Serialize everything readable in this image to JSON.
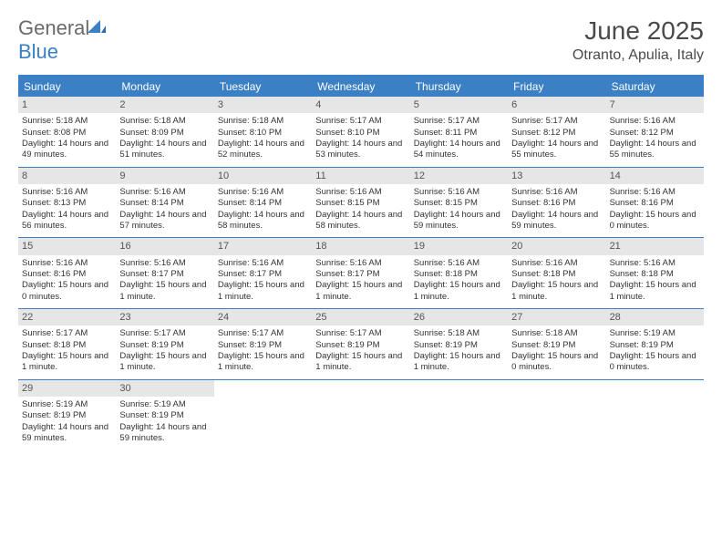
{
  "logo": {
    "general": "General",
    "blue": "Blue"
  },
  "title": "June 2025",
  "location": "Otranto, Apulia, Italy",
  "colors": {
    "brand_blue": "#3b7fc4",
    "header_gray": "#6a6a6a",
    "daynum_bg": "#e6e6e6",
    "text": "#333333",
    "background": "#ffffff"
  },
  "weekdays": [
    "Sunday",
    "Monday",
    "Tuesday",
    "Wednesday",
    "Thursday",
    "Friday",
    "Saturday"
  ],
  "day_fontsize": 9.5,
  "labels": {
    "sunrise": "Sunrise:",
    "sunset": "Sunset:",
    "daylight": "Daylight:"
  },
  "days": [
    {
      "n": 1,
      "sunrise": "5:18 AM",
      "sunset": "8:08 PM",
      "daylight": "14 hours and 49 minutes."
    },
    {
      "n": 2,
      "sunrise": "5:18 AM",
      "sunset": "8:09 PM",
      "daylight": "14 hours and 51 minutes."
    },
    {
      "n": 3,
      "sunrise": "5:18 AM",
      "sunset": "8:10 PM",
      "daylight": "14 hours and 52 minutes."
    },
    {
      "n": 4,
      "sunrise": "5:17 AM",
      "sunset": "8:10 PM",
      "daylight": "14 hours and 53 minutes."
    },
    {
      "n": 5,
      "sunrise": "5:17 AM",
      "sunset": "8:11 PM",
      "daylight": "14 hours and 54 minutes."
    },
    {
      "n": 6,
      "sunrise": "5:17 AM",
      "sunset": "8:12 PM",
      "daylight": "14 hours and 55 minutes."
    },
    {
      "n": 7,
      "sunrise": "5:16 AM",
      "sunset": "8:12 PM",
      "daylight": "14 hours and 55 minutes."
    },
    {
      "n": 8,
      "sunrise": "5:16 AM",
      "sunset": "8:13 PM",
      "daylight": "14 hours and 56 minutes."
    },
    {
      "n": 9,
      "sunrise": "5:16 AM",
      "sunset": "8:14 PM",
      "daylight": "14 hours and 57 minutes."
    },
    {
      "n": 10,
      "sunrise": "5:16 AM",
      "sunset": "8:14 PM",
      "daylight": "14 hours and 58 minutes."
    },
    {
      "n": 11,
      "sunrise": "5:16 AM",
      "sunset": "8:15 PM",
      "daylight": "14 hours and 58 minutes."
    },
    {
      "n": 12,
      "sunrise": "5:16 AM",
      "sunset": "8:15 PM",
      "daylight": "14 hours and 59 minutes."
    },
    {
      "n": 13,
      "sunrise": "5:16 AM",
      "sunset": "8:16 PM",
      "daylight": "14 hours and 59 minutes."
    },
    {
      "n": 14,
      "sunrise": "5:16 AM",
      "sunset": "8:16 PM",
      "daylight": "15 hours and 0 minutes."
    },
    {
      "n": 15,
      "sunrise": "5:16 AM",
      "sunset": "8:16 PM",
      "daylight": "15 hours and 0 minutes."
    },
    {
      "n": 16,
      "sunrise": "5:16 AM",
      "sunset": "8:17 PM",
      "daylight": "15 hours and 1 minute."
    },
    {
      "n": 17,
      "sunrise": "5:16 AM",
      "sunset": "8:17 PM",
      "daylight": "15 hours and 1 minute."
    },
    {
      "n": 18,
      "sunrise": "5:16 AM",
      "sunset": "8:17 PM",
      "daylight": "15 hours and 1 minute."
    },
    {
      "n": 19,
      "sunrise": "5:16 AM",
      "sunset": "8:18 PM",
      "daylight": "15 hours and 1 minute."
    },
    {
      "n": 20,
      "sunrise": "5:16 AM",
      "sunset": "8:18 PM",
      "daylight": "15 hours and 1 minute."
    },
    {
      "n": 21,
      "sunrise": "5:16 AM",
      "sunset": "8:18 PM",
      "daylight": "15 hours and 1 minute."
    },
    {
      "n": 22,
      "sunrise": "5:17 AM",
      "sunset": "8:18 PM",
      "daylight": "15 hours and 1 minute."
    },
    {
      "n": 23,
      "sunrise": "5:17 AM",
      "sunset": "8:19 PM",
      "daylight": "15 hours and 1 minute."
    },
    {
      "n": 24,
      "sunrise": "5:17 AM",
      "sunset": "8:19 PM",
      "daylight": "15 hours and 1 minute."
    },
    {
      "n": 25,
      "sunrise": "5:17 AM",
      "sunset": "8:19 PM",
      "daylight": "15 hours and 1 minute."
    },
    {
      "n": 26,
      "sunrise": "5:18 AM",
      "sunset": "8:19 PM",
      "daylight": "15 hours and 1 minute."
    },
    {
      "n": 27,
      "sunrise": "5:18 AM",
      "sunset": "8:19 PM",
      "daylight": "15 hours and 0 minutes."
    },
    {
      "n": 28,
      "sunrise": "5:19 AM",
      "sunset": "8:19 PM",
      "daylight": "15 hours and 0 minutes."
    },
    {
      "n": 29,
      "sunrise": "5:19 AM",
      "sunset": "8:19 PM",
      "daylight": "14 hours and 59 minutes."
    },
    {
      "n": 30,
      "sunrise": "5:19 AM",
      "sunset": "8:19 PM",
      "daylight": "14 hours and 59 minutes."
    }
  ],
  "start_weekday_index": 0,
  "total_cells": 35
}
